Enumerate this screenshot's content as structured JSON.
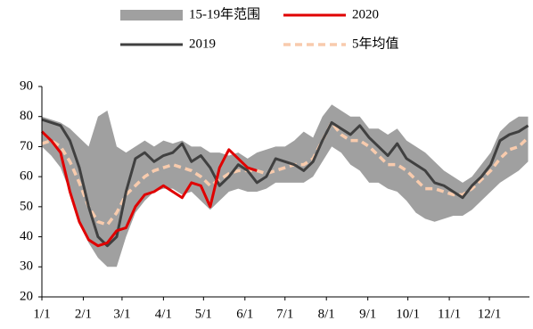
{
  "chart_data": {
    "type": "line",
    "x": [
      0,
      7,
      14,
      21,
      28,
      35,
      42,
      49,
      56,
      63,
      70,
      77,
      84,
      91,
      98,
      105,
      112,
      119,
      126,
      133,
      140,
      147,
      154,
      161,
      168,
      175,
      182,
      189,
      196,
      203,
      210,
      217,
      224,
      231,
      238,
      245,
      252,
      259,
      266,
      273,
      280,
      287,
      294,
      301,
      308,
      315,
      322,
      329,
      336,
      343,
      350,
      357,
      364
    ],
    "xlim": [
      0,
      365
    ],
    "xticks": [
      {
        "value": 0,
        "label": "1/1"
      },
      {
        "value": 31,
        "label": "2/1"
      },
      {
        "value": 60,
        "label": "3/1"
      },
      {
        "value": 91,
        "label": "4/1"
      },
      {
        "value": 121,
        "label": "5/1"
      },
      {
        "value": 152,
        "label": "6/1"
      },
      {
        "value": 182,
        "label": "7/1"
      },
      {
        "value": 213,
        "label": "8/1"
      },
      {
        "value": 244,
        "label": "9/1"
      },
      {
        "value": 274,
        "label": "10/1"
      },
      {
        "value": 305,
        "label": "11/1"
      },
      {
        "value": 335,
        "label": "12/1"
      }
    ],
    "ylim": [
      20,
      90
    ],
    "yticks": [
      20,
      30,
      40,
      50,
      60,
      70,
      80,
      90
    ],
    "range": {
      "name": "15-19年范围",
      "color": "#a0a0a0",
      "upper": [
        80,
        79,
        78,
        76,
        73,
        70,
        80,
        82,
        70,
        68,
        70,
        72,
        70,
        72,
        71,
        72,
        70,
        70,
        68,
        68,
        67,
        68,
        66,
        68,
        69,
        70,
        70,
        72,
        75,
        73,
        80,
        84,
        82,
        80,
        80,
        76,
        76,
        74,
        76,
        72,
        70,
        68,
        65,
        62,
        60,
        58,
        60,
        64,
        68,
        75,
        78,
        80,
        80
      ],
      "lower": [
        70,
        67,
        63,
        55,
        45,
        38,
        33,
        30,
        30,
        40,
        48,
        52,
        55,
        56,
        56,
        54,
        55,
        52,
        49,
        52,
        55,
        56,
        55,
        55,
        56,
        58,
        58,
        58,
        58,
        60,
        65,
        70,
        68,
        64,
        62,
        58,
        58,
        56,
        55,
        52,
        48,
        46,
        45,
        46,
        47,
        47,
        49,
        52,
        55,
        58,
        60,
        62,
        65
      ]
    },
    "series": [
      {
        "name": "2020",
        "color": "#e00000",
        "style": "solid",
        "values": [
          75,
          72,
          68,
          55,
          45,
          39,
          37,
          38,
          42,
          43,
          50,
          54,
          55,
          57,
          55,
          53,
          58,
          57,
          50,
          63,
          69,
          66,
          63,
          62,
          null,
          null,
          null,
          null,
          null,
          null,
          null,
          null,
          null,
          null,
          null,
          null,
          null,
          null,
          null,
          null,
          null,
          null,
          null,
          null,
          null,
          null,
          null,
          null,
          null,
          null,
          null,
          null,
          null
        ]
      },
      {
        "name": "2019",
        "color": "#404040",
        "style": "solid",
        "values": [
          79,
          78,
          77,
          72,
          63,
          50,
          40,
          37,
          40,
          55,
          66,
          68,
          65,
          67,
          68,
          71,
          65,
          67,
          63,
          57,
          60,
          64,
          62,
          58,
          60,
          66,
          65,
          64,
          62,
          65,
          72,
          78,
          76,
          74,
          77,
          73,
          70,
          67,
          71,
          66,
          64,
          62,
          58,
          57,
          55,
          53,
          57,
          60,
          64,
          72,
          74,
          75,
          77
        ]
      },
      {
        "name": "5年均值",
        "color": "#f8cbad",
        "style": "dashed",
        "values": [
          71,
          72,
          70,
          65,
          58,
          50,
          45,
          44,
          48,
          54,
          57,
          60,
          62,
          63,
          64,
          63,
          62,
          60,
          57,
          59,
          61,
          62,
          62,
          62,
          61,
          62,
          63,
          64,
          64,
          66,
          72,
          78,
          74,
          72,
          72,
          70,
          67,
          64,
          64,
          62,
          59,
          56,
          56,
          55,
          54,
          54,
          56,
          59,
          62,
          66,
          69,
          70,
          73
        ]
      }
    ]
  }
}
